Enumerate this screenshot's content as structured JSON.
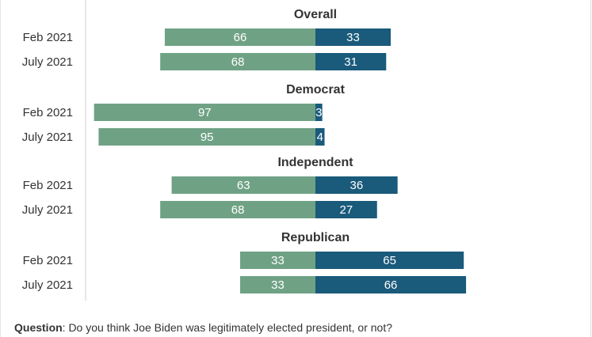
{
  "chart_data": {
    "type": "bar",
    "orientation": "horizontal-diverging",
    "colors": {
      "legitimate": "#6fa285",
      "not_legitimate": "#1a5a7b",
      "axis": "#cccccc",
      "text": "#333333"
    },
    "categories": [
      "Feb 2021",
      "July 2021"
    ],
    "groups": [
      {
        "title": "Overall",
        "rows": [
          {
            "label": "Feb 2021",
            "left": 66,
            "right": 33
          },
          {
            "label": "July 2021",
            "left": 68,
            "right": 31
          }
        ]
      },
      {
        "title": "Democrat",
        "rows": [
          {
            "label": "Feb 2021",
            "left": 97,
            "right": 3
          },
          {
            "label": "July 2021",
            "left": 95,
            "right": 4
          }
        ]
      },
      {
        "title": "Independent",
        "rows": [
          {
            "label": "Feb 2021",
            "left": 63,
            "right": 36
          },
          {
            "label": "July 2021",
            "left": 68,
            "right": 27
          }
        ]
      },
      {
        "title": "Republican",
        "rows": [
          {
            "label": "Feb 2021",
            "left": 33,
            "right": 65
          },
          {
            "label": "July 2021",
            "left": 33,
            "right": 66
          }
        ]
      }
    ]
  },
  "footer": {
    "label": "Question",
    "text": ": Do you think Joe Biden was legitimately elected president, or not?"
  }
}
